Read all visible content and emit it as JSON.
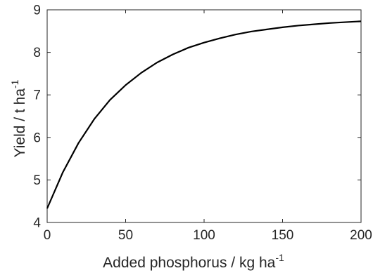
{
  "chart_data": {
    "type": "line",
    "title": "",
    "xlabel": {
      "text": "Added phosphorus / kg ha",
      "superscript": "-1"
    },
    "ylabel": {
      "text": "Yield / t ha",
      "superscript": "-1"
    },
    "xlim": [
      0,
      200
    ],
    "ylim": [
      4,
      9
    ],
    "xticks": [
      0,
      50,
      100,
      150,
      200
    ],
    "yticks": [
      4,
      5,
      6,
      7,
      8,
      9
    ],
    "xtick_labels": [
      "0",
      "50",
      "100",
      "150",
      "200"
    ],
    "ytick_labels": [
      "4",
      "5",
      "6",
      "7",
      "8",
      "9"
    ],
    "grid": false,
    "line_color": "#000000",
    "axis_color": "#262626",
    "series": [
      {
        "x": [
          0,
          10,
          20,
          30,
          40,
          50,
          60,
          70,
          80,
          90,
          100,
          110,
          120,
          130,
          140,
          150,
          160,
          170,
          180,
          190,
          200
        ],
        "y": [
          4.33,
          5.18,
          5.87,
          6.43,
          6.88,
          7.23,
          7.52,
          7.76,
          7.95,
          8.11,
          8.23,
          8.33,
          8.42,
          8.49,
          8.54,
          8.59,
          8.63,
          8.66,
          8.69,
          8.71,
          8.73
        ]
      }
    ]
  }
}
